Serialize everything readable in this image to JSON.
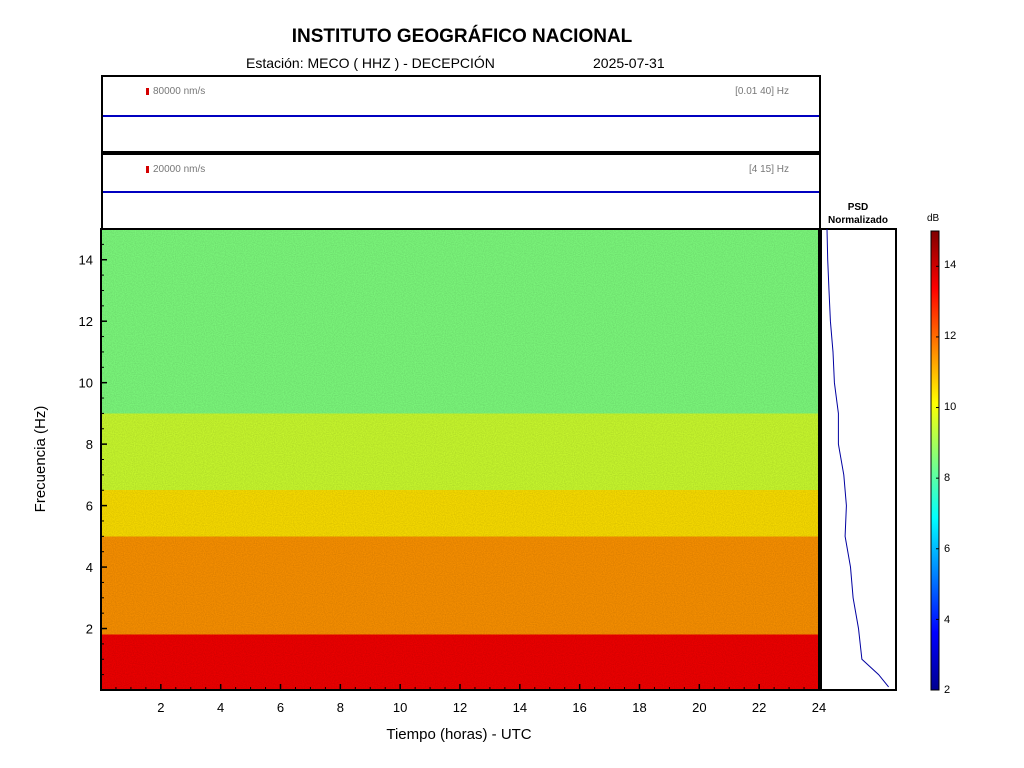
{
  "header": {
    "title": "INSTITUTO GEOGRÁFICO NACIONAL",
    "station": "Estación:  MECO ( HHZ ) - DECEPCIÓN",
    "date": "2025-07-31"
  },
  "traces": [
    {
      "scale": "80000 nm/s",
      "band": "[0.01 40] Hz"
    },
    {
      "scale": "20000 nm/s",
      "band": "[4 15] Hz"
    }
  ],
  "psd": {
    "title_line1": "PSD",
    "title_line2": "Normalizado"
  },
  "colorbar": {
    "title": "dB",
    "ticks": [
      "14",
      "12",
      "10",
      "8",
      "6",
      "4",
      "2"
    ],
    "colors": [
      "#00008f",
      "#0000ff",
      "#0080ff",
      "#00ffff",
      "#80ff80",
      "#ffff00",
      "#ff8000",
      "#ff0000",
      "#800000"
    ]
  },
  "chart_data": {
    "type": "heatmap",
    "title": "",
    "xlabel": "Tiempo (horas) - UTC",
    "ylabel": "Frecuencia  (Hz)",
    "xlim": [
      0,
      24
    ],
    "ylim": [
      0,
      15
    ],
    "x_ticks": [
      2,
      4,
      6,
      8,
      10,
      12,
      14,
      16,
      18,
      20,
      22,
      24
    ],
    "y_ticks": [
      2,
      4,
      6,
      8,
      10,
      12,
      14
    ],
    "color_range_db": [
      2,
      15
    ],
    "frequency_bands_db": [
      {
        "from_hz": 0,
        "to_hz": 0.5,
        "db": 13.5
      },
      {
        "from_hz": 0.5,
        "to_hz": 1.8,
        "db": 13.5
      },
      {
        "from_hz": 1.8,
        "to_hz": 5,
        "db": 11.5
      },
      {
        "from_hz": 5,
        "to_hz": 6.5,
        "db": 10.5
      },
      {
        "from_hz": 6.5,
        "to_hz": 9,
        "db": 9.5
      },
      {
        "from_hz": 9,
        "to_hz": 15,
        "db": 8.5
      }
    ],
    "psd_profile": {
      "freq_hz": [
        0.1,
        0.5,
        1,
        2,
        3,
        4,
        5,
        6,
        7,
        8,
        9,
        10,
        11,
        12,
        13,
        14,
        15
      ],
      "normalized_power": [
        0.95,
        0.8,
        0.55,
        0.5,
        0.42,
        0.38,
        0.3,
        0.32,
        0.28,
        0.2,
        0.2,
        0.14,
        0.12,
        0.08,
        0.06,
        0.04,
        0.03
      ]
    }
  }
}
